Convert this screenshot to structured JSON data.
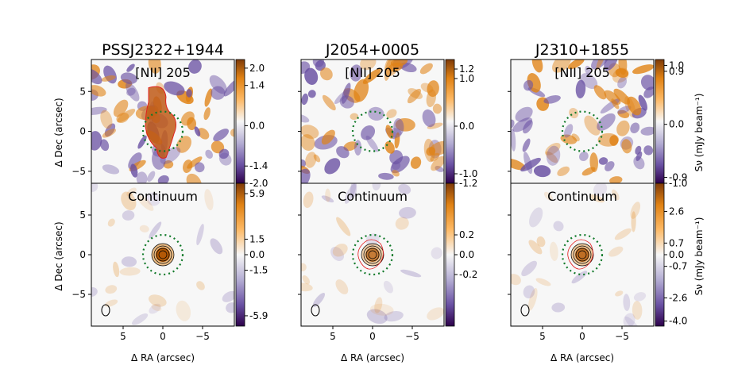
{
  "figure": {
    "x_axis_label": "Δ RA (arcsec)",
    "y_axis_label": "Δ Dec (arcsec)",
    "cbar_label": "Sν (mJy beam⁻¹)",
    "x_ticks": [
      "5",
      "0",
      "−5"
    ],
    "y_ticks": [
      "5",
      "0",
      "−5"
    ]
  },
  "chart_data": [
    {
      "type": "heatmap",
      "title": "PSSJ2322+1944",
      "panel_label": "[NII] 205",
      "row": "line",
      "x_range": [
        9,
        -9
      ],
      "y_range": [
        -6.5,
        9
      ],
      "cbar_ticks": [
        "2.0",
        "1.4",
        "0.0",
        "-1.4",
        "-2.0"
      ],
      "cbar_values": [
        2.0,
        1.4,
        0.0,
        -1.4,
        -2.0
      ],
      "cbar_range": [
        -2.0,
        2.3
      ]
    },
    {
      "type": "heatmap",
      "title": "J2054+0005",
      "panel_label": "[NII] 205",
      "row": "line",
      "x_range": [
        9,
        -9
      ],
      "y_range": [
        -6.5,
        9
      ],
      "cbar_ticks": [
        "1.2",
        "1.0",
        "0.0",
        "-1.0",
        "-1.2"
      ],
      "cbar_values": [
        1.2,
        1.0,
        0.0,
        -1.0,
        -1.2
      ],
      "cbar_range": [
        -1.2,
        1.4
      ]
    },
    {
      "type": "heatmap",
      "title": "J2310+1855",
      "panel_label": "[NII] 205",
      "row": "line",
      "x_range": [
        9,
        -9
      ],
      "y_range": [
        -6.5,
        9
      ],
      "cbar_ticks": [
        "1.0",
        "0.9",
        "0.0",
        "-0.9",
        "-1.0"
      ],
      "cbar_values": [
        1.0,
        0.9,
        0.0,
        -0.9,
        -1.0
      ],
      "cbar_range": [
        -1.0,
        1.1
      ]
    },
    {
      "type": "heatmap",
      "title": "",
      "panel_label": "Continuum",
      "row": "cont",
      "x_range": [
        9,
        -9
      ],
      "y_range": [
        -9,
        9
      ],
      "cbar_ticks": [
        "5.9",
        "1.5",
        "0.0",
        "-1.5",
        "-5.9"
      ],
      "cbar_values": [
        5.9,
        1.5,
        0.0,
        -1.5,
        -5.9
      ],
      "cbar_range": [
        -6.9,
        6.9
      ]
    },
    {
      "type": "heatmap",
      "title": "",
      "panel_label": "Continuum",
      "row": "cont",
      "x_range": [
        9,
        -9
      ],
      "y_range": [
        -9,
        9
      ],
      "cbar_ticks": [
        "0.2",
        "0.0",
        "-0.2"
      ],
      "cbar_values": [
        0.2,
        0.0,
        -0.2
      ],
      "cbar_range": [
        -0.72,
        0.72
      ]
    },
    {
      "type": "heatmap",
      "title": "",
      "panel_label": "Continuum",
      "row": "cont",
      "x_range": [
        9,
        -9
      ],
      "y_range": [
        -9,
        9
      ],
      "cbar_ticks": [
        "2.6",
        "0.7",
        "0.0",
        "-0.7",
        "-2.6",
        "-4.0"
      ],
      "cbar_values": [
        2.6,
        0.7,
        0.0,
        -0.7,
        -2.6,
        -4.0
      ],
      "cbar_range": [
        -4.3,
        4.3
      ]
    }
  ]
}
